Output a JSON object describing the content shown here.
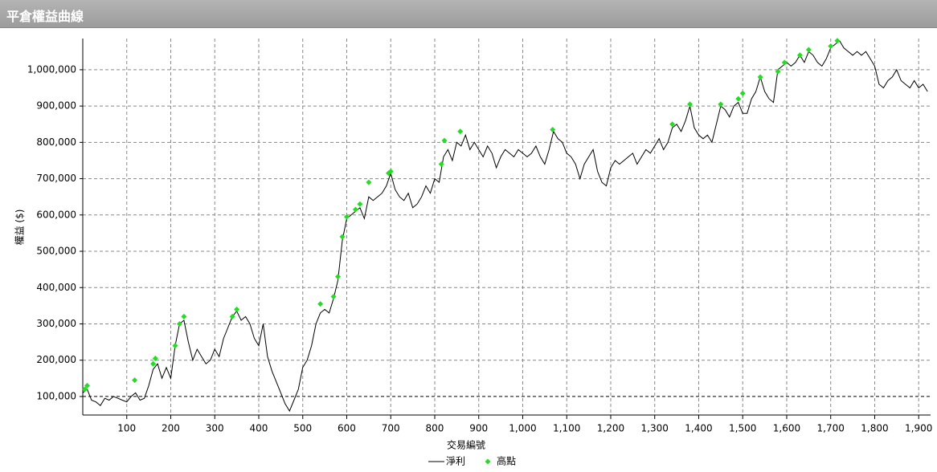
{
  "chart_data": {
    "type": "line",
    "title": "平倉權益曲線",
    "x_label": "交易編號",
    "y_label": "權益 ($)",
    "xlim": [
      0,
      1927
    ],
    "ylim": [
      49000,
      1086000
    ],
    "xticks": [
      100,
      200,
      300,
      400,
      500,
      600,
      700,
      800,
      900,
      {
        "value": 1000,
        "label": "1,000"
      },
      {
        "value": 1100,
        "label": "1,100"
      },
      {
        "value": 1200,
        "label": "1,200"
      },
      {
        "value": 1300,
        "label": "1,300"
      },
      {
        "value": 1400,
        "label": "1,400"
      },
      {
        "value": 1500,
        "label": "1,500"
      },
      {
        "value": 1600,
        "label": "1,600"
      },
      {
        "value": 1700,
        "label": "1,700"
      },
      {
        "value": 1800,
        "label": "1,800"
      },
      {
        "value": 1900,
        "label": "1,900"
      }
    ],
    "yticks": [
      {
        "value": 100000,
        "label": "100,000"
      },
      {
        "value": 200000,
        "label": "200,000"
      },
      {
        "value": 300000,
        "label": "300,000"
      },
      {
        "value": 400000,
        "label": "400,000"
      },
      {
        "value": 500000,
        "label": "500,000"
      },
      {
        "value": 600000,
        "label": "600,000"
      },
      {
        "value": 700000,
        "label": "700,000"
      },
      {
        "value": 800000,
        "label": "800,000"
      },
      {
        "value": 900000,
        "label": "900,000"
      },
      {
        "value": 1000000,
        "label": "1,000,000"
      }
    ],
    "grid": true,
    "legend": "bottom",
    "series": [
      {
        "name": "淨利",
        "type": "line",
        "color": "#000000",
        "x": [
          0,
          10,
          20,
          30,
          40,
          50,
          60,
          70,
          80,
          90,
          100,
          110,
          120,
          130,
          140,
          150,
          160,
          170,
          180,
          190,
          200,
          210,
          220,
          230,
          240,
          250,
          260,
          270,
          280,
          290,
          300,
          310,
          320,
          330,
          340,
          350,
          360,
          370,
          380,
          390,
          400,
          410,
          420,
          430,
          440,
          450,
          460,
          470,
          480,
          490,
          500,
          510,
          520,
          530,
          540,
          550,
          560,
          570,
          580,
          590,
          600,
          610,
          620,
          630,
          640,
          650,
          660,
          670,
          680,
          690,
          700,
          710,
          720,
          730,
          740,
          750,
          760,
          770,
          780,
          790,
          800,
          810,
          820,
          830,
          840,
          850,
          860,
          870,
          880,
          890,
          900,
          910,
          920,
          930,
          940,
          950,
          960,
          970,
          980,
          990,
          1000,
          1010,
          1020,
          1030,
          1040,
          1050,
          1060,
          1070,
          1080,
          1090,
          1100,
          1110,
          1120,
          1130,
          1140,
          1150,
          1160,
          1170,
          1180,
          1190,
          1200,
          1210,
          1220,
          1230,
          1240,
          1250,
          1260,
          1270,
          1280,
          1290,
          1300,
          1310,
          1320,
          1330,
          1340,
          1350,
          1360,
          1370,
          1380,
          1390,
          1400,
          1410,
          1420,
          1430,
          1440,
          1450,
          1460,
          1470,
          1480,
          1490,
          1500,
          1510,
          1520,
          1530,
          1540,
          1550,
          1560,
          1570,
          1580,
          1590,
          1600,
          1610,
          1620,
          1630,
          1640,
          1650,
          1660,
          1670,
          1680,
          1690,
          1700,
          1710,
          1720,
          1730,
          1740,
          1750,
          1760,
          1770,
          1780,
          1790,
          1800,
          1810,
          1820,
          1830,
          1840,
          1850,
          1860,
          1870,
          1880,
          1890,
          1900,
          1910,
          1920
        ],
        "values": [
          110000,
          120000,
          90000,
          85000,
          75000,
          95000,
          90000,
          100000,
          95000,
          90000,
          85000,
          100000,
          110000,
          90000,
          95000,
          130000,
          175000,
          190000,
          150000,
          180000,
          150000,
          240000,
          300000,
          310000,
          250000,
          200000,
          230000,
          210000,
          190000,
          200000,
          230000,
          210000,
          260000,
          290000,
          320000,
          335000,
          310000,
          320000,
          300000,
          260000,
          240000,
          300000,
          210000,
          170000,
          140000,
          110000,
          80000,
          60000,
          90000,
          120000,
          180000,
          200000,
          240000,
          300000,
          330000,
          340000,
          330000,
          370000,
          420000,
          530000,
          590000,
          600000,
          610000,
          620000,
          590000,
          650000,
          640000,
          650000,
          660000,
          680000,
          715000,
          670000,
          650000,
          640000,
          660000,
          620000,
          630000,
          650000,
          680000,
          660000,
          700000,
          690000,
          760000,
          780000,
          750000,
          800000,
          790000,
          820000,
          780000,
          800000,
          780000,
          760000,
          790000,
          770000,
          730000,
          760000,
          780000,
          770000,
          760000,
          780000,
          770000,
          760000,
          770000,
          790000,
          760000,
          740000,
          780000,
          830000,
          810000,
          800000,
          770000,
          760000,
          740000,
          700000,
          740000,
          760000,
          780000,
          720000,
          690000,
          680000,
          730000,
          750000,
          740000,
          750000,
          760000,
          770000,
          740000,
          760000,
          780000,
          770000,
          790000,
          810000,
          780000,
          800000,
          840000,
          850000,
          830000,
          860000,
          900000,
          840000,
          820000,
          810000,
          820000,
          800000,
          850000,
          900000,
          890000,
          870000,
          900000,
          910000,
          880000,
          880000,
          920000,
          940000,
          980000,
          940000,
          920000,
          910000,
          1000000,
          1010000,
          1020000,
          1010000,
          1020000,
          1040000,
          1020000,
          1050000,
          1040000,
          1020000,
          1010000,
          1030000,
          1060000,
          1070000,
          1080000,
          1060000,
          1050000,
          1040000,
          1050000,
          1040000,
          1050000,
          1030000,
          1010000,
          960000,
          950000,
          970000,
          980000,
          1000000,
          970000,
          960000,
          950000,
          970000,
          950000,
          960000,
          940000
        ]
      },
      {
        "name": "高點",
        "type": "scatter",
        "color": "#22dd22",
        "x": [
          5,
          10,
          118,
          160,
          165,
          210,
          220,
          230,
          340,
          350,
          540,
          570,
          580,
          590,
          600,
          620,
          630,
          650,
          695,
          700,
          815,
          822,
          858,
          1068,
          1340,
          1380,
          1450,
          1490,
          1500,
          1540,
          1580,
          1595,
          1630,
          1650,
          1700,
          1715
        ],
        "values": [
          120000,
          130000,
          145000,
          190000,
          205000,
          240000,
          300000,
          320000,
          320000,
          340000,
          355000,
          375000,
          430000,
          540000,
          595000,
          615000,
          630000,
          690000,
          715000,
          720000,
          740000,
          805000,
          830000,
          835000,
          850000,
          905000,
          905000,
          920000,
          935000,
          980000,
          995000,
          1020000,
          1040000,
          1055000,
          1065000,
          1080000
        ]
      }
    ]
  }
}
